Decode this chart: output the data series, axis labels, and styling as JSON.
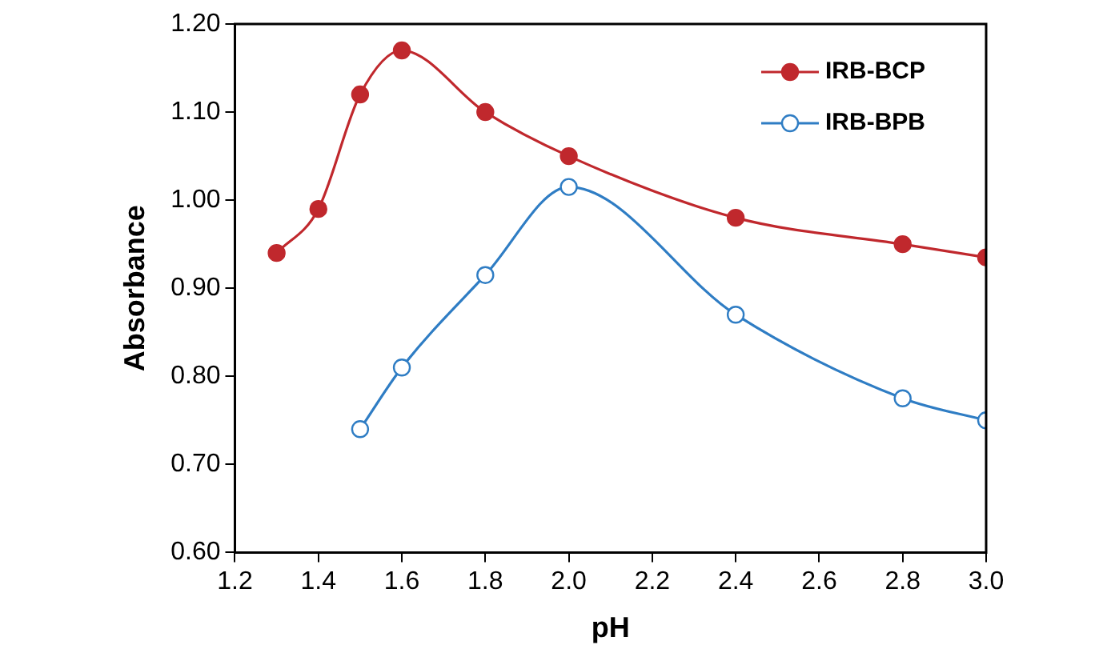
{
  "chart_data": {
    "type": "line",
    "xlabel": "pH",
    "ylabel": "Absorbance",
    "xlim": [
      1.2,
      3.0
    ],
    "xticks": [
      {
        "value": 1.2,
        "label": "1.2"
      },
      {
        "value": 1.4,
        "label": "1.4"
      },
      {
        "value": 1.6,
        "label": "1.6"
      },
      {
        "value": 1.8,
        "label": "1.8"
      },
      {
        "value": 2.0,
        "label": "2.0"
      },
      {
        "value": 2.2,
        "label": "2.2"
      },
      {
        "value": 2.4,
        "label": "2.4"
      },
      {
        "value": 2.6,
        "label": "2.6"
      },
      {
        "value": 2.8,
        "label": "2.8"
      },
      {
        "value": 3.0,
        "label": "3.0"
      }
    ],
    "ylim": [
      0.6,
      1.2
    ],
    "yticks": [
      {
        "value": 0.6,
        "label": "0.60"
      },
      {
        "value": 0.7,
        "label": "0.70"
      },
      {
        "value": 0.8,
        "label": "0.80"
      },
      {
        "value": 0.9,
        "label": "0.90"
      },
      {
        "value": 1.0,
        "label": "1.00"
      },
      {
        "value": 1.1,
        "label": "1.10"
      },
      {
        "value": 1.2,
        "label": "1.20"
      }
    ],
    "grid": false,
    "legend": "top right",
    "marker": "circle",
    "series": [
      {
        "name": "IRB-BCP",
        "color": "#c0282d",
        "x": [
          1.3,
          1.4,
          1.5,
          1.6,
          1.8,
          2.0,
          2.4,
          2.8,
          3.0
        ],
        "values": [
          0.94,
          0.99,
          1.12,
          1.17,
          1.1,
          1.05,
          0.98,
          0.95,
          0.935
        ]
      },
      {
        "name": "IRB-BPB",
        "color": "#2f7dc4",
        "x": [
          1.5,
          1.6,
          1.8,
          2.0,
          2.4,
          2.8,
          3.0
        ],
        "values": [
          0.74,
          0.81,
          0.915,
          1.015,
          0.87,
          0.775,
          0.75
        ]
      }
    ]
  }
}
